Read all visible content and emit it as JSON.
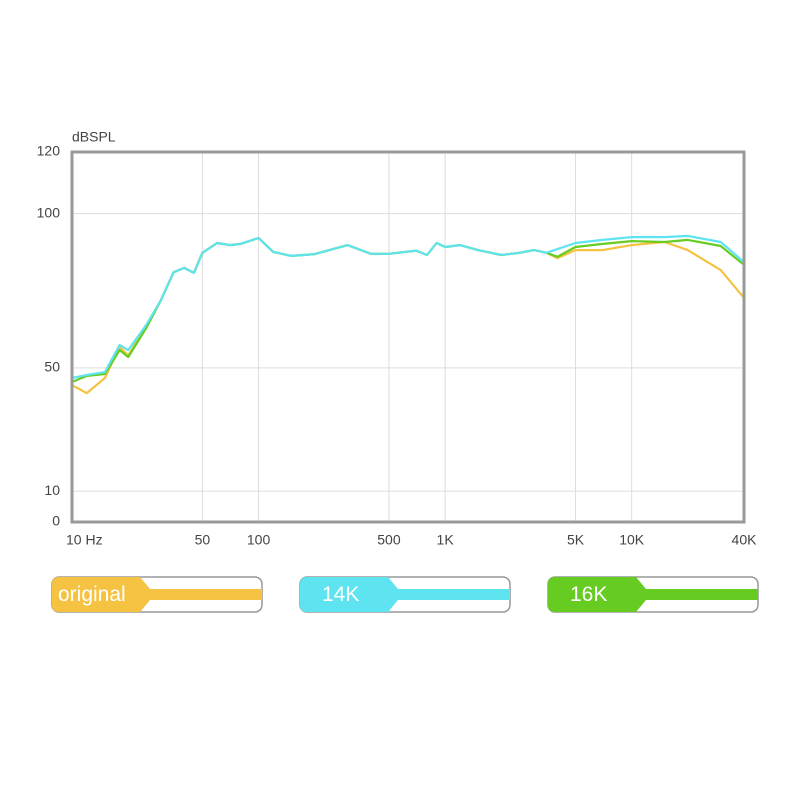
{
  "chart_data": {
    "type": "line",
    "y_label": "dBSPL",
    "xscale": "log",
    "grid": true,
    "xlim": [
      10,
      40000
    ],
    "ylim": [
      0,
      120
    ],
    "xticks": [
      {
        "value": 10,
        "label": "10 Hz"
      },
      50,
      100,
      500,
      {
        "value": 1000,
        "label": "1K"
      },
      {
        "value": 5000,
        "label": "5K"
      },
      {
        "value": 10000,
        "label": "10K"
      },
      {
        "value": 40000,
        "label": "40K"
      }
    ],
    "yticks": [
      0,
      10,
      50,
      100,
      120
    ],
    "x": [
      10,
      12,
      15,
      18,
      20,
      25,
      30,
      35,
      40,
      45,
      50,
      60,
      70,
      80,
      100,
      120,
      150,
      200,
      300,
      400,
      500,
      700,
      800,
      900,
      1000,
      1200,
      1500,
      2000,
      2500,
      3000,
      3500,
      4000,
      5000,
      7000,
      10000,
      15000,
      20000,
      30000,
      40000
    ],
    "series": [
      {
        "name": "original",
        "color": "#f5c242",
        "values": [
          44.4,
          41.8,
          46.7,
          56.8,
          54,
          63.5,
          72,
          81,
          82.4,
          80.8,
          87.3,
          90.5,
          89.8,
          90.2,
          92.1,
          87.6,
          86.3,
          86.9,
          89.8,
          87,
          87,
          88,
          86.6,
          90.5,
          89.2,
          89.8,
          88.2,
          86.6,
          87.3,
          88.2,
          87.3,
          85.6,
          88.2,
          88.2,
          89.8,
          90.8,
          88.2,
          81.7,
          72.7
        ]
      },
      {
        "name": "14K",
        "color": "#5ee3f0",
        "values": [
          46.7,
          47.7,
          48.6,
          57.4,
          55.8,
          63.9,
          72,
          81,
          82.4,
          80.8,
          87.3,
          90.5,
          89.8,
          90.2,
          92.1,
          87.6,
          86.3,
          86.9,
          89.8,
          87,
          87,
          88,
          86.6,
          90.5,
          89.2,
          89.8,
          88.2,
          86.6,
          87.3,
          88.2,
          87.3,
          88.5,
          90.5,
          91.5,
          92.4,
          92.4,
          92.8,
          90.8,
          84.3
        ]
      },
      {
        "name": "16K",
        "color": "#66cc22",
        "values": [
          45.4,
          47.4,
          48,
          55.8,
          53.5,
          62.9,
          72,
          81,
          82.4,
          80.8,
          87.3,
          90.5,
          89.8,
          90.2,
          92.1,
          87.6,
          86.3,
          86.9,
          89.8,
          87,
          87,
          88,
          86.6,
          90.5,
          89.2,
          89.8,
          88.2,
          86.6,
          87.3,
          88.2,
          87.3,
          86,
          89.2,
          90.2,
          91.1,
          90.8,
          91.5,
          89.5,
          83.4
        ]
      }
    ]
  }
}
